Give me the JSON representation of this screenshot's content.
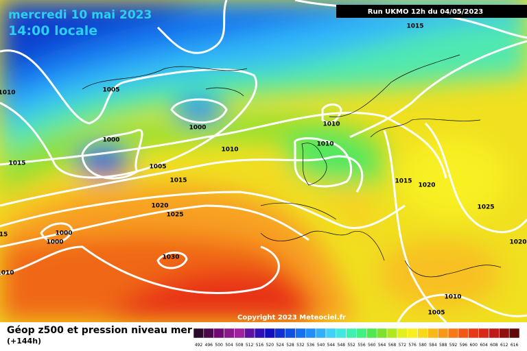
{
  "header": {
    "date": "mercredi 10 mai 2023",
    "time": "14:00 locale",
    "run": "Run UKMO 12h du 04/05/2023"
  },
  "map": {
    "isobar_labels": [
      "1015",
      "1010",
      "1005",
      "1000",
      "1010",
      "1010",
      "1010",
      "1000",
      "1015",
      "1005",
      "1015",
      "1015",
      "1020",
      "1020",
      "1025",
      "1025",
      "1000",
      "1000",
      "15",
      "1030",
      "1010",
      "1020",
      "1010",
      "1005"
    ],
    "copyright": "Copyright 2023 Meteociel.fr"
  },
  "footer": {
    "title": "Géop z500 et pression niveau mer",
    "lead": "(+144h)",
    "scale": [
      492,
      496,
      500,
      504,
      508,
      512,
      516,
      520,
      524,
      528,
      532,
      536,
      540,
      544,
      548,
      552,
      556,
      560,
      564,
      568,
      572,
      576,
      580,
      584,
      588,
      592,
      596,
      600,
      604,
      608,
      612,
      616
    ],
    "colors": [
      "#2a0a2a",
      "#4a0a4a",
      "#700a70",
      "#8a1a8a",
      "#a020a0",
      "#6010a0",
      "#3010b0",
      "#1010c0",
      "#1030d0",
      "#1050e0",
      "#1870f0",
      "#2090f8",
      "#30b0f8",
      "#40d0f8",
      "#40e8e0",
      "#40f0b0",
      "#40f080",
      "#50e850",
      "#80e030",
      "#b0e820",
      "#e0f020",
      "#f8f020",
      "#f8d818",
      "#f8b818",
      "#f89818",
      "#f87818",
      "#f05818",
      "#e83818",
      "#d82818",
      "#c01818",
      "#901010",
      "#600808"
    ]
  }
}
